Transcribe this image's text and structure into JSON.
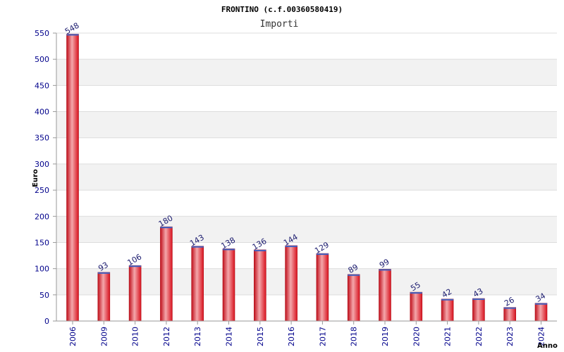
{
  "chart_data": {
    "type": "bar",
    "title": "FRONTINO (c.f.00360580419)",
    "subtitle": "Importi",
    "ylabel": "Euro",
    "xlabel": "Anno",
    "categories": [
      "2006",
      "2009",
      "2010",
      "2012",
      "2013",
      "2014",
      "2015",
      "2016",
      "2017",
      "2018",
      "2019",
      "2020",
      "2021",
      "2022",
      "2023",
      "2024"
    ],
    "values": [
      548,
      93,
      106,
      180,
      143,
      138,
      136,
      144,
      129,
      89,
      99,
      55,
      42,
      43,
      26,
      34
    ],
    "ylim": [
      0,
      550
    ],
    "yticks": [
      0,
      50,
      100,
      150,
      200,
      250,
      300,
      350,
      400,
      450,
      500,
      550
    ],
    "grid": true,
    "colors": {
      "bar": "#e8202a",
      "bar_highlight": "#f6b2b6",
      "bar_edge": "#b0101a",
      "axis_text": "#00008b",
      "band": "#f2f2f2",
      "grid": "#dddddd"
    }
  }
}
